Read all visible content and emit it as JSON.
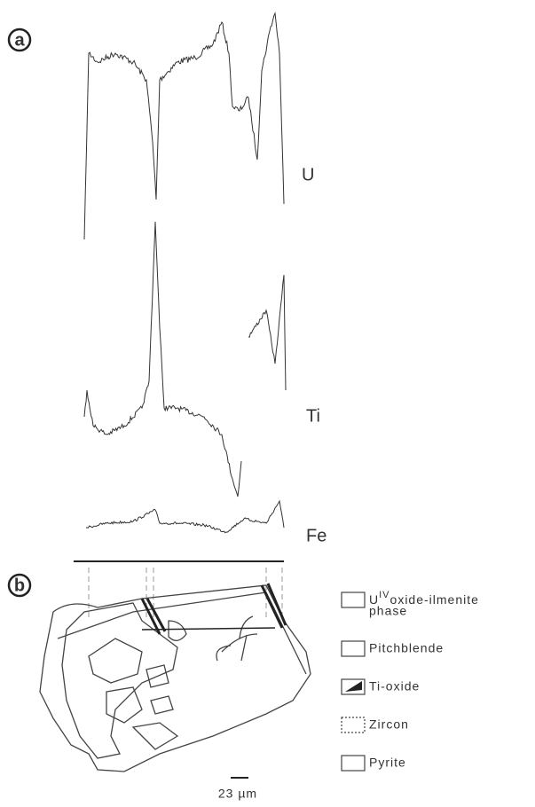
{
  "panel_a": {
    "label": "a",
    "traces": [
      "U",
      "Ti",
      "Fe"
    ]
  },
  "panel_b": {
    "label": "b",
    "scale_bar": "23 µm",
    "legend": [
      {
        "base": "U",
        "sup": "IV",
        "text": "oxide-ilmenite",
        "text2": "phase"
      },
      {
        "text": "Pitchblende"
      },
      {
        "text": "Ti-oxide"
      },
      {
        "text": "Zircon"
      },
      {
        "text": "Pyrite"
      }
    ]
  }
}
